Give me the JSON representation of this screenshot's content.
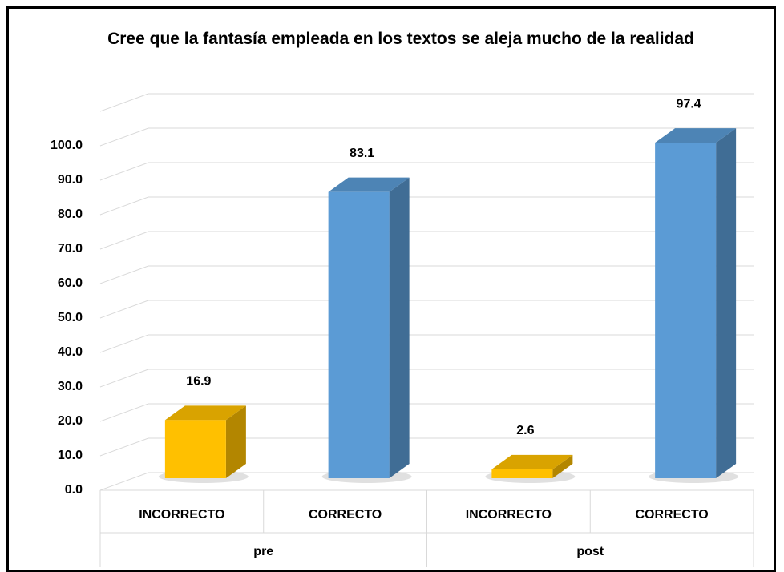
{
  "chart_data": {
    "type": "bar3d",
    "title": "Cree que la fantasía empleada en los textos se aleja mucho de la realidad",
    "categories": [
      "INCORRECTO",
      "CORRECTO",
      "INCORRECTO",
      "CORRECTO"
    ],
    "groups": [
      {
        "name": "pre",
        "size": 2
      },
      {
        "name": "post",
        "size": 2
      }
    ],
    "values": [
      16.9,
      83.1,
      2.6,
      97.4
    ],
    "colors": [
      "#ffc000",
      "#5b9bd5",
      "#ffc000",
      "#5b9bd5"
    ],
    "ylim": [
      0,
      110
    ],
    "yticks": [
      {
        "value": 0,
        "label": "0.0"
      },
      {
        "value": 10,
        "label": "10.0"
      },
      {
        "value": 20,
        "label": "20.0"
      },
      {
        "value": 30,
        "label": "30.0"
      },
      {
        "value": 40,
        "label": "40.0"
      },
      {
        "value": 50,
        "label": "50.0"
      },
      {
        "value": 60,
        "label": "60.0"
      },
      {
        "value": 70,
        "label": "70.0"
      },
      {
        "value": 80,
        "label": "80.0"
      },
      {
        "value": 90,
        "label": "90.0"
      },
      {
        "value": 100,
        "label": "100.0"
      }
    ],
    "grid": true
  }
}
